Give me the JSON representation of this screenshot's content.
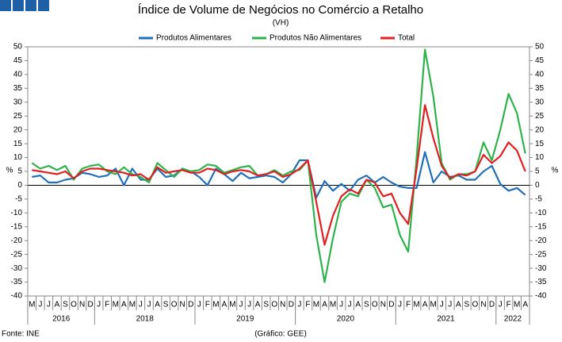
{
  "chart_data": {
    "type": "line",
    "title": "Índice de Volume de Negócios no Comércio a Retalho",
    "subtitle": "(VH)",
    "y_label": "%",
    "source": "Fonte: INE",
    "credit": "(Gráfico: GEE)",
    "categories": [
      "M",
      "J",
      "J",
      "A",
      "S",
      "O",
      "N",
      "D",
      "J",
      "F",
      "M",
      "A",
      "M",
      "J",
      "J",
      "A",
      "S",
      "O",
      "N",
      "D",
      "J",
      "F",
      "M",
      "A",
      "M",
      "J",
      "J",
      "A",
      "S",
      "O",
      "N",
      "D",
      "J",
      "F",
      "M",
      "A",
      "M",
      "J",
      "J",
      "A",
      "S",
      "O",
      "N",
      "D",
      "J",
      "F",
      "M",
      "A",
      "M",
      "J",
      "J",
      "A",
      "S",
      "O",
      "N",
      "D",
      "J",
      "F",
      "M",
      "A"
    ],
    "years": [
      "2016",
      "2018",
      "2019",
      "2020",
      "2021",
      "2022"
    ],
    "series": [
      {
        "name": "Produtos Alimentares",
        "color": "#1f6fba",
        "values": [
          3,
          3.5,
          1,
          1,
          2,
          2.5,
          4.5,
          4,
          3,
          3.5,
          6,
          0,
          6,
          2,
          2,
          6,
          3,
          3.5,
          6,
          5,
          3,
          0,
          6,
          4,
          1.5,
          4.5,
          2.5,
          3,
          3.5,
          3,
          1,
          4,
          9,
          9,
          -4.5,
          1.5,
          -2,
          0.5,
          -2,
          2,
          3.5,
          1,
          3,
          1,
          -0.5,
          -1,
          -1,
          12,
          1,
          5,
          3,
          3.5,
          2,
          2,
          5,
          7,
          0.5,
          -2,
          -1,
          -3.5
        ]
      },
      {
        "name": "Produtos Não Alimentares",
        "color": "#2db34a",
        "values": [
          8,
          6,
          7,
          5.5,
          7,
          2,
          6,
          7,
          7.5,
          5,
          4,
          6.5,
          4,
          3,
          1,
          8,
          5.5,
          3,
          6,
          5,
          5.5,
          7.5,
          7,
          4.5,
          5.5,
          6.5,
          7,
          3.5,
          4,
          5.5,
          3.5,
          5,
          5.5,
          9,
          -18,
          -35,
          -19,
          -6,
          -3,
          -4,
          2,
          -1,
          -8,
          -7,
          -18,
          -24,
          10,
          49,
          32,
          8,
          2,
          4,
          4,
          5,
          15.5,
          9,
          20,
          33,
          26,
          11.5
        ]
      },
      {
        "name": "Total",
        "color": "#e02020",
        "values": [
          5.5,
          5,
          4.5,
          4,
          5,
          2.5,
          5,
          6,
          6,
          5.5,
          5,
          4.5,
          3.5,
          4,
          2,
          6.5,
          4.5,
          5,
          5.5,
          4.5,
          4.5,
          6,
          5.5,
          4,
          5,
          5.5,
          5,
          3.5,
          4,
          5,
          3,
          4,
          6,
          9,
          -6,
          -21.5,
          -11,
          -4,
          -1.5,
          -3,
          2,
          1,
          -4,
          -3,
          -10,
          -14,
          6,
          29,
          17,
          7,
          2.5,
          4,
          3.5,
          5,
          11,
          8,
          10.5,
          15.5,
          12.5,
          5
        ]
      }
    ],
    "ylim": [
      -40,
      50
    ],
    "yticks": [
      -40,
      -35,
      -30,
      -25,
      -20,
      -15,
      -10,
      -5,
      0,
      5,
      10,
      15,
      20,
      25,
      30,
      35,
      40,
      45,
      50
    ]
  }
}
